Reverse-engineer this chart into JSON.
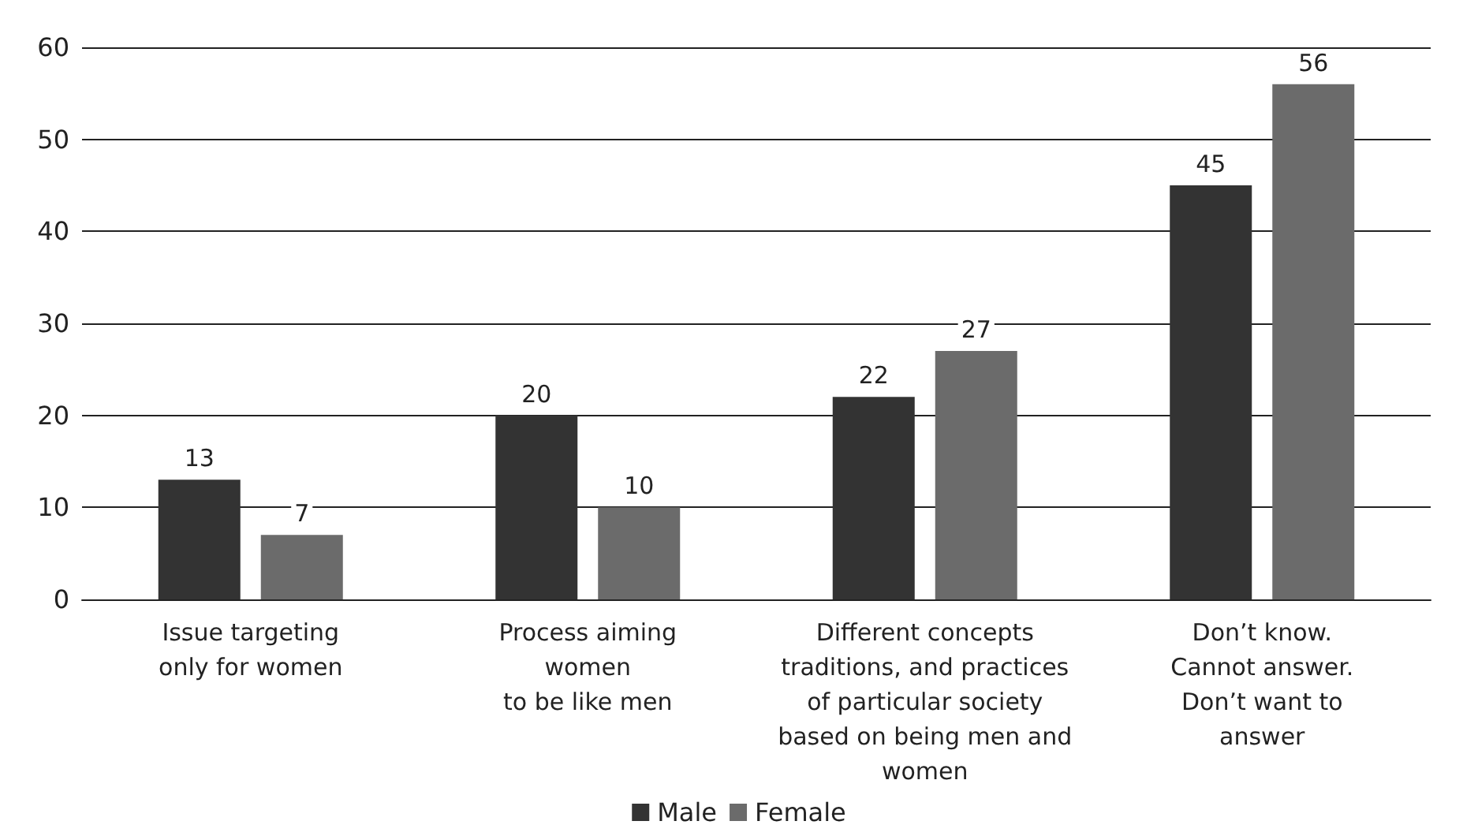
{
  "chart_data": {
    "type": "bar",
    "categories": [
      "Issue targeting\nonly for women",
      "Process aiming\nwomen\nto be like men",
      "Different concepts\ntraditions, and practices\nof particular society\nbased on being men and\nwomen",
      "Don’t know.\nCannot answer.\nDon’t want to\nanswer"
    ],
    "series": [
      {
        "name": "Male",
        "color": "#333333",
        "values": [
          13,
          20,
          22,
          45
        ]
      },
      {
        "name": "Female",
        "color": "#6b6b6b",
        "values": [
          7,
          10,
          27,
          56
        ]
      }
    ],
    "ylim": [
      0,
      60
    ],
    "yticks": [
      0,
      10,
      20,
      30,
      40,
      50,
      60
    ],
    "grid": "y",
    "legend": "bottom",
    "data_labels": true
  }
}
